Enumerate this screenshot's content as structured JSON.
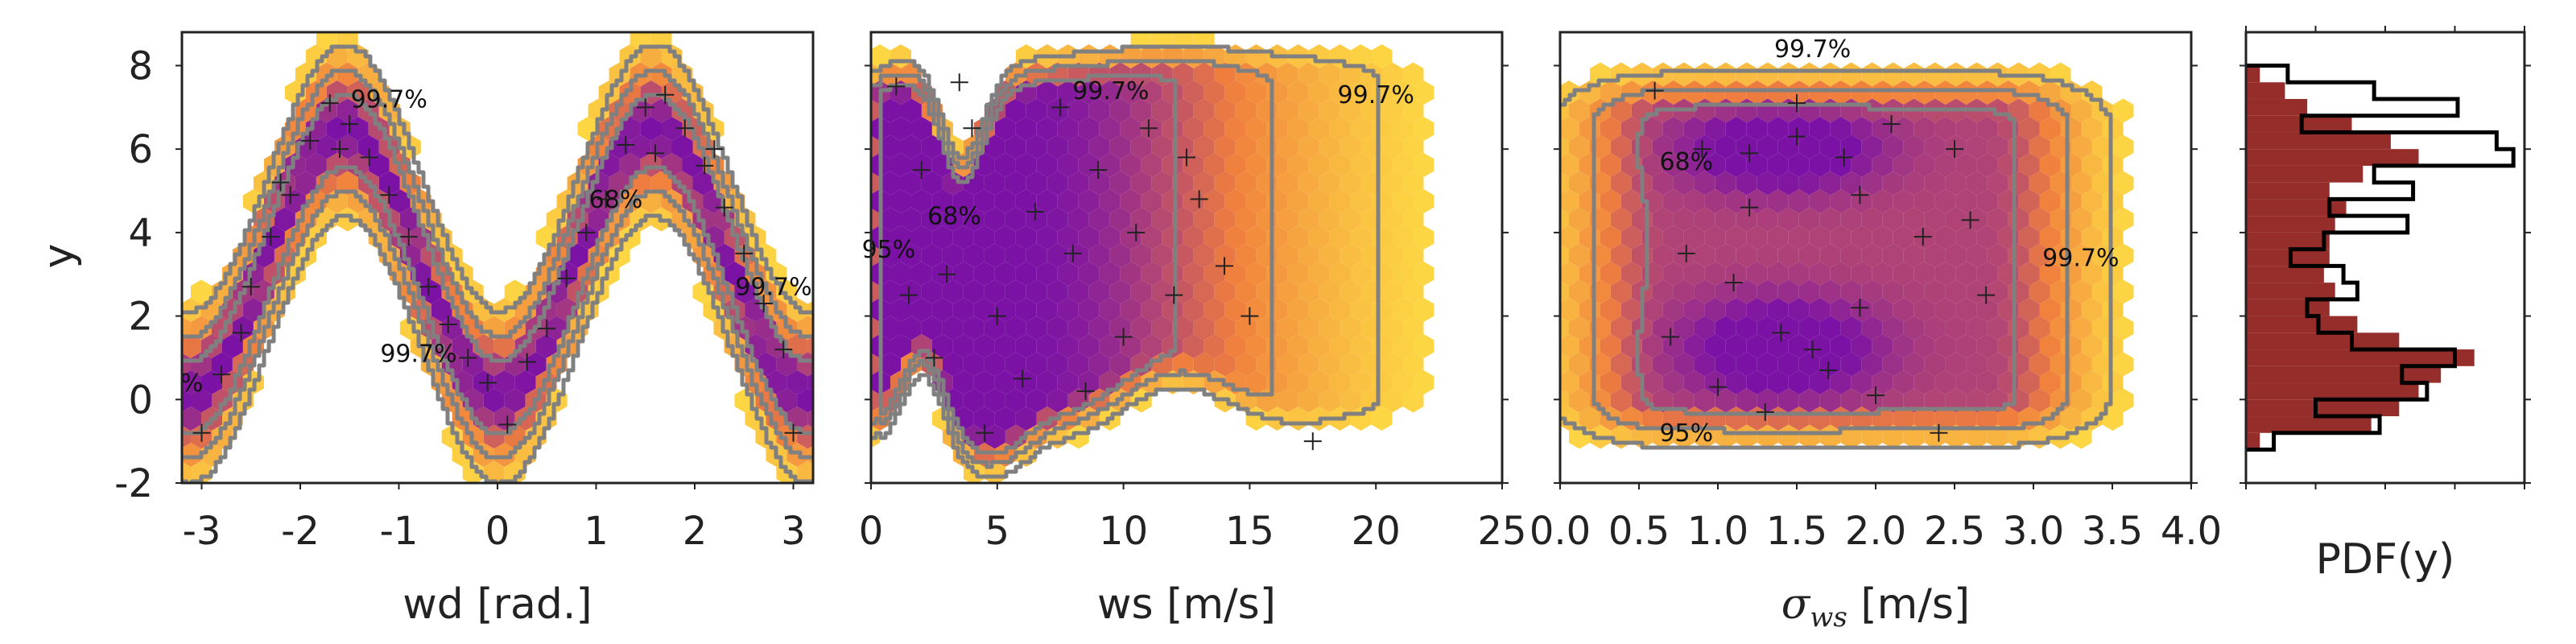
{
  "colors": {
    "hex_low": "#fdd743",
    "hex_mid": "#f07f3d",
    "hex_high": "#7b12a5",
    "contour": "#808080",
    "marker": "#222222",
    "pdf_fill": "#952d2a",
    "pdf_step": "#000000",
    "frame": "#222222"
  },
  "chart_data": [
    {
      "type": "hexbin",
      "name": "y vs wd",
      "xlabel": "wd [rad.]",
      "ylabel": "y",
      "xlim": [
        -3.2,
        3.2
      ],
      "ylim": [
        -2,
        8.8
      ],
      "xticks": [
        "-3",
        "-2",
        "-1",
        "0",
        "1",
        "2",
        "3"
      ],
      "xtick_values": [
        -3,
        -2,
        -1,
        0,
        1,
        2,
        3
      ],
      "yticks": [
        "-2",
        "0",
        "2",
        "4",
        "6",
        "8"
      ],
      "ytick_values": [
        -2,
        0,
        2,
        4,
        6,
        8
      ],
      "contour_levels": [
        "68%",
        "95%",
        "99.7%"
      ],
      "contour_labels": [
        {
          "text": "99.7%",
          "x": -1.1,
          "y": 7.0
        },
        {
          "text": "68%",
          "x": 1.2,
          "y": 4.6
        },
        {
          "text": "99.7%",
          "x": 2.8,
          "y": 2.5
        },
        {
          "text": "99.7%",
          "x": -0.8,
          "y": 0.9
        },
        {
          "text": "%",
          "x": -3.1,
          "y": 0.2
        }
      ],
      "markers": [
        {
          "x": -3.0,
          "y": -0.8
        },
        {
          "x": -2.8,
          "y": 0.6
        },
        {
          "x": -2.6,
          "y": 1.6
        },
        {
          "x": -2.5,
          "y": 2.7
        },
        {
          "x": -2.3,
          "y": 3.9
        },
        {
          "x": -2.1,
          "y": 4.9
        },
        {
          "x": -1.9,
          "y": 6.2
        },
        {
          "x": -1.7,
          "y": 7.1
        },
        {
          "x": -1.5,
          "y": 6.6
        },
        {
          "x": -1.3,
          "y": 5.8
        },
        {
          "x": -1.1,
          "y": 4.9
        },
        {
          "x": -0.9,
          "y": 3.9
        },
        {
          "x": -0.7,
          "y": 2.7
        },
        {
          "x": -0.5,
          "y": 1.8
        },
        {
          "x": -0.3,
          "y": 1.0
        },
        {
          "x": -0.1,
          "y": 0.4
        },
        {
          "x": 0.1,
          "y": -0.6
        },
        {
          "x": 0.3,
          "y": 0.9
        },
        {
          "x": 0.5,
          "y": 1.7
        },
        {
          "x": 0.7,
          "y": 2.9
        },
        {
          "x": 0.9,
          "y": 4.0
        },
        {
          "x": 1.1,
          "y": 4.8
        },
        {
          "x": 1.3,
          "y": 6.1
        },
        {
          "x": 1.5,
          "y": 7.0
        },
        {
          "x": 1.7,
          "y": 7.3
        },
        {
          "x": 1.9,
          "y": 6.5
        },
        {
          "x": 2.1,
          "y": 5.6
        },
        {
          "x": 2.3,
          "y": 4.6
        },
        {
          "x": 2.5,
          "y": 3.5
        },
        {
          "x": 2.7,
          "y": 2.3
        },
        {
          "x": 2.9,
          "y": 1.2
        },
        {
          "x": 3.0,
          "y": -0.8
        },
        {
          "x": -1.6,
          "y": 6.0
        },
        {
          "x": 1.6,
          "y": 5.9
        },
        {
          "x": -2.2,
          "y": 5.2
        },
        {
          "x": 2.2,
          "y": 6.0
        }
      ]
    },
    {
      "type": "hexbin",
      "name": "y vs ws",
      "xlabel": "ws [m/s]",
      "ylabel": "",
      "xlim": [
        0,
        25
      ],
      "ylim": [
        -2,
        8.8
      ],
      "xticks": [
        "0",
        "5",
        "10",
        "15",
        "20",
        "25"
      ],
      "xtick_values": [
        0,
        5,
        10,
        15,
        20,
        25
      ],
      "contour_levels": [
        "68%",
        "95%",
        "99.7%"
      ],
      "contour_labels": [
        {
          "text": "99.7%",
          "x": 9.5,
          "y": 7.2
        },
        {
          "text": "99.7%",
          "x": 20.0,
          "y": 7.1
        },
        {
          "text": "68%",
          "x": 3.3,
          "y": 4.2
        },
        {
          "text": "95%",
          "x": 0.7,
          "y": 3.4
        }
      ],
      "markers": [
        {
          "x": 1.0,
          "y": 7.5
        },
        {
          "x": 2.0,
          "y": 5.5
        },
        {
          "x": 3.0,
          "y": 3.0
        },
        {
          "x": 2.5,
          "y": 1.0
        },
        {
          "x": 4.0,
          "y": 6.5
        },
        {
          "x": 5.0,
          "y": 2.0
        },
        {
          "x": 6.0,
          "y": 0.5
        },
        {
          "x": 6.5,
          "y": 4.5
        },
        {
          "x": 7.5,
          "y": 7.0
        },
        {
          "x": 8.0,
          "y": 3.5
        },
        {
          "x": 9.0,
          "y": 5.5
        },
        {
          "x": 10.0,
          "y": 1.5
        },
        {
          "x": 10.5,
          "y": 4.0
        },
        {
          "x": 11.0,
          "y": 6.5
        },
        {
          "x": 12.0,
          "y": 2.5
        },
        {
          "x": 13.0,
          "y": 4.8
        },
        {
          "x": 14.0,
          "y": 3.2
        },
        {
          "x": 15.0,
          "y": 2.0
        },
        {
          "x": 17.5,
          "y": -1.0
        },
        {
          "x": 4.5,
          "y": -0.8
        },
        {
          "x": 1.5,
          "y": 2.5
        },
        {
          "x": 8.5,
          "y": 0.2
        },
        {
          "x": 3.5,
          "y": 7.6
        },
        {
          "x": 12.5,
          "y": 5.8
        }
      ]
    },
    {
      "type": "hexbin",
      "name": "y vs sigma_ws",
      "xlabel": "σ",
      "xlabel_sub": "ws",
      "xlabel_unit": " [m/s]",
      "ylabel": "",
      "xlim": [
        0,
        4
      ],
      "ylim": [
        -2,
        8.8
      ],
      "xticks": [
        "0.0",
        "0.5",
        "1.0",
        "1.5",
        "2.0",
        "2.5",
        "3.0",
        "3.5",
        "4.0"
      ],
      "xtick_values": [
        0,
        0.5,
        1,
        1.5,
        2,
        2.5,
        3,
        3.5,
        4
      ],
      "contour_levels": [
        "68%",
        "95%",
        "99.7%"
      ],
      "contour_labels": [
        {
          "text": "99.7%",
          "x": 1.6,
          "y": 8.2
        },
        {
          "text": "68%",
          "x": 0.8,
          "y": 5.5
        },
        {
          "text": "99.7%",
          "x": 3.3,
          "y": 3.2
        },
        {
          "text": "95%",
          "x": 0.8,
          "y": -1.0
        }
      ],
      "markers": [
        {
          "x": 0.6,
          "y": 7.4
        },
        {
          "x": 0.9,
          "y": 6.0
        },
        {
          "x": 1.2,
          "y": 5.9
        },
        {
          "x": 1.5,
          "y": 6.3
        },
        {
          "x": 1.8,
          "y": 5.8
        },
        {
          "x": 2.1,
          "y": 6.6
        },
        {
          "x": 0.8,
          "y": 3.5
        },
        {
          "x": 1.1,
          "y": 2.8
        },
        {
          "x": 1.4,
          "y": 1.6
        },
        {
          "x": 1.6,
          "y": 1.2
        },
        {
          "x": 1.9,
          "y": 2.2
        },
        {
          "x": 2.3,
          "y": 3.9
        },
        {
          "x": 2.6,
          "y": 4.3
        },
        {
          "x": 2.7,
          "y": 2.5
        },
        {
          "x": 1.0,
          "y": 0.3
        },
        {
          "x": 1.3,
          "y": -0.3
        },
        {
          "x": 1.7,
          "y": 0.7
        },
        {
          "x": 2.0,
          "y": 0.1
        },
        {
          "x": 2.4,
          "y": -0.8
        },
        {
          "x": 1.2,
          "y": 4.6
        },
        {
          "x": 0.7,
          "y": 1.5
        },
        {
          "x": 1.9,
          "y": 4.9
        },
        {
          "x": 2.5,
          "y": 6.0
        },
        {
          "x": 1.5,
          "y": 7.1
        }
      ]
    },
    {
      "type": "histogram",
      "name": "marginal pdf",
      "orientation": "horizontal",
      "xlabel": "PDF(y)",
      "ylim": [
        -2,
        8.8
      ],
      "bin_edges": [
        -1.2,
        -0.8,
        -0.4,
        0.0,
        0.4,
        0.8,
        1.2,
        1.6,
        2.0,
        2.4,
        2.8,
        3.2,
        3.6,
        4.0,
        4.4,
        4.8,
        5.2,
        5.6,
        6.0,
        6.4,
        6.8,
        7.2,
        7.6,
        8.0
      ],
      "filled_values": [
        0.05,
        0.45,
        0.55,
        0.62,
        0.7,
        0.82,
        0.55,
        0.4,
        0.3,
        0.32,
        0.28,
        0.3,
        0.3,
        0.32,
        0.36,
        0.3,
        0.42,
        0.62,
        0.52,
        0.38,
        0.22,
        0.14,
        0.05
      ],
      "step_values": [
        0.1,
        0.48,
        0.25,
        0.65,
        0.56,
        0.75,
        0.38,
        0.26,
        0.22,
        0.4,
        0.35,
        0.16,
        0.28,
        0.58,
        0.3,
        0.6,
        0.46,
        0.96,
        0.9,
        0.2,
        0.76,
        0.46,
        0.15
      ]
    }
  ]
}
